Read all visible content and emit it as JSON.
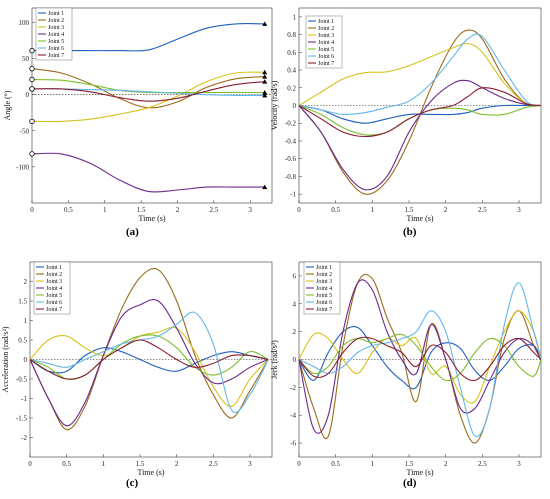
{
  "panel_labels": [
    "(a)",
    "(b)",
    "(c)",
    "(d)"
  ],
  "colors": {
    "Joint 1": "#1f5fbf",
    "Joint 2": "#9c6a1c",
    "Joint 3": "#d8c21a",
    "Joint 4": "#6a2a8a",
    "Joint 5": "#7cbf2a",
    "Joint 6": "#62b7ea",
    "Joint 7": "#8a1c2e"
  },
  "chart_data": [
    {
      "type": "line",
      "xlabel": "Time (s)",
      "ylabel": "Angle (°)",
      "xlim": [
        0,
        3.3
      ],
      "ylim": [
        -150,
        120
      ],
      "xticks": [
        "0",
        "0.5",
        "1",
        "1.5",
        "2",
        "2.5",
        "3"
      ],
      "xtick_values": [
        0,
        0.5,
        1,
        1.5,
        2,
        2.5,
        3
      ],
      "yticks": [
        "100",
        "50",
        "0",
        "-50",
        "-100"
      ],
      "ytick_values": [
        100,
        50,
        0,
        -50,
        -100
      ],
      "legend": [
        "Joint 1",
        "Joint 2",
        "Joint 3",
        "Joint 4",
        "Joint 5",
        "Joint 6",
        "Joint 7"
      ],
      "x": [
        0,
        0.4,
        0.8,
        1.2,
        1.6,
        2.0,
        2.4,
        2.8,
        3.2
      ],
      "series": [
        {
          "name": "Joint 1",
          "values": [
            61,
            61,
            61,
            61,
            62,
            77,
            92,
            98,
            98
          ]
        },
        {
          "name": "Joint 2",
          "values": [
            36,
            30,
            15,
            -5,
            -18,
            -10,
            10,
            22,
            25
          ]
        },
        {
          "name": "Joint 3",
          "values": [
            -37,
            -37,
            -34,
            -27,
            -18,
            -2,
            18,
            30,
            31
          ]
        },
        {
          "name": "Joint 4",
          "values": [
            -82,
            -82,
            -95,
            -118,
            -134,
            -132,
            -128,
            -128,
            -128
          ]
        },
        {
          "name": "Joint 5",
          "values": [
            21,
            20,
            14,
            6,
            3,
            3,
            3,
            3,
            3
          ]
        },
        {
          "name": "Joint 6",
          "values": [
            8,
            8,
            7,
            6,
            4,
            2,
            0,
            -1,
            -1
          ]
        },
        {
          "name": "Joint 7",
          "values": [
            8,
            8,
            4,
            -4,
            -9,
            -5,
            5,
            14,
            18
          ]
        }
      ]
    },
    {
      "type": "line",
      "xlabel": "Time (s)",
      "ylabel": "Velocity (rad/s)",
      "xlim": [
        0,
        3.3
      ],
      "ylim": [
        -1.1,
        1.1
      ],
      "xticks": [
        "0",
        "0.5",
        "1",
        "1.5",
        "2",
        "2.5",
        "3"
      ],
      "xtick_values": [
        0,
        0.5,
        1,
        1.5,
        2,
        2.5,
        3
      ],
      "yticks": [
        "1",
        "0.8",
        "0.6",
        "0.4",
        "0.2",
        "0",
        "-0.2",
        "-0.4",
        "-0.6",
        "-0.8",
        "-1"
      ],
      "ytick_values": [
        1,
        0.8,
        0.6,
        0.4,
        0.2,
        0,
        -0.2,
        -0.4,
        -0.6,
        -0.8,
        -1
      ],
      "legend": [
        "Joint 1",
        "Joint 2",
        "Joint 3",
        "Joint 4",
        "Joint 5",
        "Joint 6",
        "Joint 7"
      ],
      "x": [
        0,
        0.3,
        0.6,
        0.9,
        1.2,
        1.5,
        1.8,
        2.1,
        2.3,
        2.5,
        2.8,
        3.1,
        3.3
      ],
      "series": [
        {
          "name": "Joint 1",
          "values": [
            0,
            -0.05,
            -0.15,
            -0.2,
            -0.15,
            -0.1,
            -0.1,
            -0.1,
            -0.08,
            -0.03,
            0,
            0,
            0
          ]
        },
        {
          "name": "Joint 2",
          "values": [
            0,
            -0.3,
            -0.75,
            -1.0,
            -0.85,
            -0.4,
            0.2,
            0.7,
            0.85,
            0.75,
            0.3,
            0.02,
            0
          ]
        },
        {
          "name": "Joint 3",
          "values": [
            0,
            0.15,
            0.3,
            0.37,
            0.38,
            0.45,
            0.55,
            0.65,
            0.7,
            0.6,
            0.25,
            0.02,
            0
          ]
        },
        {
          "name": "Joint 4",
          "values": [
            0,
            -0.3,
            -0.72,
            -0.95,
            -0.8,
            -0.3,
            0.05,
            0.25,
            0.28,
            0.2,
            0.08,
            0.01,
            0
          ]
        },
        {
          "name": "Joint 5",
          "values": [
            0,
            -0.1,
            -0.25,
            -0.33,
            -0.3,
            -0.15,
            -0.05,
            -0.03,
            -0.05,
            -0.1,
            -0.1,
            -0.02,
            0
          ]
        },
        {
          "name": "Joint 6",
          "values": [
            0,
            -0.05,
            -0.1,
            -0.08,
            -0.02,
            0.05,
            0.25,
            0.55,
            0.75,
            0.78,
            0.4,
            0.05,
            0
          ]
        },
        {
          "name": "Joint 7",
          "values": [
            0,
            -0.15,
            -0.3,
            -0.35,
            -0.3,
            -0.15,
            -0.05,
            0.0,
            0.1,
            0.2,
            0.15,
            0.02,
            0
          ]
        }
      ]
    },
    {
      "type": "line",
      "xlabel": "Time (s)",
      "ylabel": "Acceleration (rad/s²)",
      "xlim": [
        0,
        3.3
      ],
      "ylim": [
        -2.5,
        2.5
      ],
      "xticks": [
        "0",
        "0.5",
        "1",
        "1.5",
        "2",
        "2.5",
        "3"
      ],
      "xtick_values": [
        0,
        0.5,
        1,
        1.5,
        2,
        2.5,
        3
      ],
      "yticks": [
        "2",
        "1.5",
        "1",
        "0.5",
        "0",
        "-0.5",
        "-1",
        "-1.5",
        "-2"
      ],
      "ytick_values": [
        2,
        1.5,
        1,
        0.5,
        0,
        -0.5,
        -1,
        -1.5,
        -2
      ],
      "legend": [
        "Joint 1",
        "Joint 2",
        "Joint 3",
        "Joint 4",
        "Joint 5",
        "Joint 6",
        "Joint 7"
      ],
      "x": [
        0,
        0.25,
        0.5,
        0.75,
        1.0,
        1.25,
        1.5,
        1.75,
        2.0,
        2.25,
        2.5,
        2.75,
        3.0,
        3.25
      ],
      "series": [
        {
          "name": "Joint 1",
          "values": [
            0,
            -0.3,
            -0.3,
            0.1,
            0.3,
            0.2,
            0.0,
            -0.2,
            -0.3,
            -0.1,
            0.1,
            0.2,
            0.1,
            0
          ]
        },
        {
          "name": "Joint 2",
          "values": [
            0,
            -1.0,
            -1.8,
            -1.2,
            0.1,
            1.3,
            2.1,
            2.3,
            1.5,
            0.1,
            -0.9,
            -1.5,
            -0.8,
            0
          ]
        },
        {
          "name": "Joint 3",
          "values": [
            0,
            0.5,
            0.6,
            0.3,
            0.1,
            0.3,
            0.6,
            0.7,
            0.8,
            0.2,
            -0.7,
            -1.2,
            -0.5,
            0
          ]
        },
        {
          "name": "Joint 4",
          "values": [
            0,
            -1.0,
            -1.7,
            -1.1,
            0.1,
            1.1,
            1.4,
            1.5,
            0.8,
            -0.1,
            -0.6,
            -0.5,
            -0.2,
            0
          ]
        },
        {
          "name": "Joint 5",
          "values": [
            0,
            -0.2,
            -0.5,
            -0.4,
            0.0,
            0.4,
            0.6,
            0.6,
            0.3,
            -0.2,
            -0.4,
            -0.2,
            0.2,
            0
          ]
        },
        {
          "name": "Joint 6",
          "values": [
            0,
            -0.1,
            -0.2,
            0.0,
            0.2,
            0.4,
            0.5,
            0.6,
            0.9,
            1.2,
            0.4,
            -1.3,
            -0.9,
            0
          ]
        },
        {
          "name": "Joint 7",
          "values": [
            0,
            -0.3,
            -0.5,
            -0.4,
            0.0,
            0.3,
            0.5,
            0.3,
            0.0,
            -0.2,
            -0.1,
            0.1,
            0.1,
            0
          ]
        }
      ]
    },
    {
      "type": "line",
      "xlabel": "Time (s)",
      "ylabel": "Jerk (rad/s³)",
      "xlim": [
        0,
        3.3
      ],
      "ylim": [
        -7,
        7
      ],
      "xticks": [
        "0",
        "0.5",
        "1",
        "1.5",
        "2",
        "2.5",
        "3"
      ],
      "xtick_values": [
        0,
        0.5,
        1,
        1.5,
        2,
        2.5,
        3
      ],
      "yticks": [
        "6",
        "4",
        "2",
        "0",
        "-2",
        "-4",
        "-6"
      ],
      "ytick_values": [
        6,
        4,
        2,
        0,
        -2,
        -4,
        -6
      ],
      "legend": [
        "Joint 1",
        "Joint 2",
        "Joint 3",
        "Joint 4",
        "Joint 5",
        "Joint 6",
        "Joint 7"
      ],
      "x": [
        0,
        0.2,
        0.4,
        0.6,
        0.8,
        1.0,
        1.2,
        1.4,
        1.6,
        1.8,
        2.0,
        2.2,
        2.4,
        2.6,
        2.8,
        3.0,
        3.2,
        3.3
      ],
      "series": [
        {
          "name": "Joint 1",
          "values": [
            0,
            -1.5,
            0.5,
            2.0,
            2.3,
            1.0,
            -0.5,
            -1.5,
            -2.0,
            0.5,
            1.2,
            0.8,
            -0.8,
            -1.5,
            -0.5,
            0.8,
            1.0,
            0
          ]
        },
        {
          "name": "Joint 2",
          "values": [
            0,
            -3.5,
            -5.5,
            1.0,
            5.5,
            5.8,
            3.0,
            0.5,
            -3.0,
            2.5,
            0.0,
            -4.0,
            -6.0,
            -3.5,
            1.5,
            3.5,
            1.0,
            0
          ]
        },
        {
          "name": "Joint 3",
          "values": [
            0,
            1.8,
            1.5,
            0.0,
            -1.0,
            0.5,
            1.5,
            1.0,
            1.5,
            -1.0,
            -0.5,
            -2.5,
            -3.0,
            -0.5,
            2.0,
            3.5,
            2.0,
            0
          ]
        },
        {
          "name": "Joint 4",
          "values": [
            0,
            -5.0,
            -4.0,
            2.0,
            5.5,
            5.0,
            2.0,
            0.0,
            -1.0,
            2.5,
            0.0,
            -3.5,
            -3.5,
            -1.5,
            0.5,
            1.5,
            1.0,
            0
          ]
        },
        {
          "name": "Joint 5",
          "values": [
            0,
            -1.0,
            -0.5,
            1.0,
            1.5,
            1.2,
            1.5,
            1.8,
            1.0,
            -0.5,
            -1.5,
            -1.0,
            0.5,
            1.5,
            1.0,
            -0.5,
            -1.2,
            0
          ]
        },
        {
          "name": "Joint 6",
          "values": [
            0,
            -0.5,
            -1.0,
            -0.5,
            0.5,
            1.0,
            1.2,
            1.5,
            2.0,
            3.5,
            2.0,
            -2.0,
            -5.5,
            -3.5,
            2.5,
            5.5,
            2.0,
            0
          ]
        },
        {
          "name": "Joint 7",
          "values": [
            0,
            -1.2,
            -1.0,
            0.5,
            1.5,
            1.5,
            1.0,
            0.5,
            -0.5,
            1.0,
            0.5,
            -1.0,
            -1.5,
            -0.5,
            1.0,
            1.5,
            0.5,
            0
          ]
        }
      ]
    }
  ]
}
